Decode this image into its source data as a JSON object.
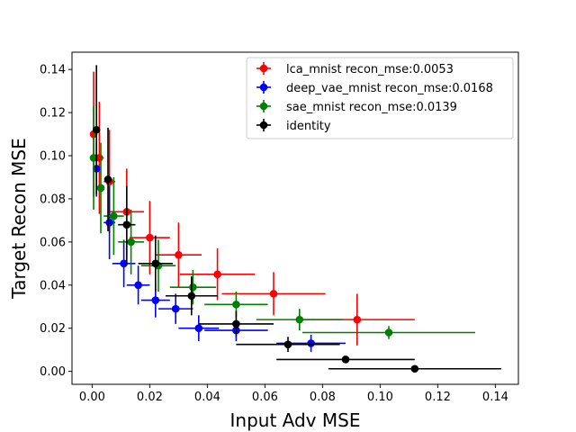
{
  "chart_data": {
    "type": "scatter",
    "xlabel": "Input Adv MSE",
    "ylabel": "Target Recon MSE",
    "xlim": [
      -0.007,
      0.148
    ],
    "ylim": [
      -0.006,
      0.148
    ],
    "xticks": [
      "0.00",
      "0.02",
      "0.04",
      "0.06",
      "0.08",
      "0.10",
      "0.12",
      "0.14"
    ],
    "yticks": [
      "0.00",
      "0.02",
      "0.04",
      "0.06",
      "0.08",
      "0.10",
      "0.12",
      "0.14"
    ],
    "grid": false,
    "legend_position": "top-right",
    "series": [
      {
        "name": "lca_mnist recon_mse:0.0053",
        "color": "#ff0000",
        "points": [
          {
            "x": 0.0005,
            "y": 0.11,
            "xerr": 0.001,
            "yerr": 0.029
          },
          {
            "x": 0.0025,
            "y": 0.099,
            "xerr": 0.0015,
            "yerr": 0.026
          },
          {
            "x": 0.006,
            "y": 0.088,
            "xerr": 0.002,
            "yerr": 0.024
          },
          {
            "x": 0.012,
            "y": 0.074,
            "xerr": 0.006,
            "yerr": 0.02
          },
          {
            "x": 0.02,
            "y": 0.062,
            "xerr": 0.007,
            "yerr": 0.017
          },
          {
            "x": 0.03,
            "y": 0.054,
            "xerr": 0.008,
            "yerr": 0.015
          },
          {
            "x": 0.0435,
            "y": 0.045,
            "xerr": 0.013,
            "yerr": 0.012
          },
          {
            "x": 0.063,
            "y": 0.036,
            "xerr": 0.018,
            "yerr": 0.01
          },
          {
            "x": 0.092,
            "y": 0.024,
            "xerr": 0.02,
            "yerr": 0.012
          }
        ]
      },
      {
        "name": "deep_vae_mnist recon_mse:0.0168",
        "color": "#0000ff",
        "points": [
          {
            "x": 0.0015,
            "y": 0.094,
            "xerr": 0.001,
            "yerr": 0.013
          },
          {
            "x": 0.006,
            "y": 0.069,
            "xerr": 0.002,
            "yerr": 0.017
          },
          {
            "x": 0.011,
            "y": 0.05,
            "xerr": 0.004,
            "yerr": 0.011
          },
          {
            "x": 0.016,
            "y": 0.04,
            "xerr": 0.004,
            "yerr": 0.009
          },
          {
            "x": 0.022,
            "y": 0.033,
            "xerr": 0.005,
            "yerr": 0.008
          },
          {
            "x": 0.029,
            "y": 0.029,
            "xerr": 0.006,
            "yerr": 0.007
          },
          {
            "x": 0.037,
            "y": 0.02,
            "xerr": 0.007,
            "yerr": 0.006
          },
          {
            "x": 0.05,
            "y": 0.019,
            "xerr": 0.011,
            "yerr": 0.005
          },
          {
            "x": 0.076,
            "y": 0.013,
            "xerr": 0.012,
            "yerr": 0.004
          }
        ]
      },
      {
        "name": "sae_mnist recon_mse:0.0139",
        "color": "#008000",
        "points": [
          {
            "x": 0.0005,
            "y": 0.099,
            "xerr": 0.001,
            "yerr": 0.024
          },
          {
            "x": 0.003,
            "y": 0.085,
            "xerr": 0.001,
            "yerr": 0.021
          },
          {
            "x": 0.0075,
            "y": 0.072,
            "xerr": 0.0035,
            "yerr": 0.018
          },
          {
            "x": 0.0135,
            "y": 0.06,
            "xerr": 0.0045,
            "yerr": 0.015
          },
          {
            "x": 0.023,
            "y": 0.049,
            "xerr": 0.006,
            "yerr": 0.012
          },
          {
            "x": 0.035,
            "y": 0.039,
            "xerr": 0.008,
            "yerr": 0.008
          },
          {
            "x": 0.05,
            "y": 0.031,
            "xerr": 0.011,
            "yerr": 0.006
          },
          {
            "x": 0.072,
            "y": 0.024,
            "xerr": 0.015,
            "yerr": 0.005
          },
          {
            "x": 0.103,
            "y": 0.018,
            "xerr": 0.03,
            "yerr": 0.003
          }
        ]
      },
      {
        "name": "identity",
        "color": "#000000",
        "points": [
          {
            "x": 0.0015,
            "y": 0.112,
            "xerr": 0.0005,
            "yerr": 0.03
          },
          {
            "x": 0.0055,
            "y": 0.089,
            "xerr": 0.001,
            "yerr": 0.024
          },
          {
            "x": 0.012,
            "y": 0.068,
            "xerr": 0.003,
            "yerr": 0.018
          },
          {
            "x": 0.022,
            "y": 0.05,
            "xerr": 0.006,
            "yerr": 0.013
          },
          {
            "x": 0.0345,
            "y": 0.035,
            "xerr": 0.009,
            "yerr": 0.009
          },
          {
            "x": 0.05,
            "y": 0.022,
            "xerr": 0.013,
            "yerr": 0.006
          },
          {
            "x": 0.068,
            "y": 0.0125,
            "xerr": 0.018,
            "yerr": 0.0035
          },
          {
            "x": 0.088,
            "y": 0.0055,
            "xerr": 0.024,
            "yerr": 0.0015
          },
          {
            "x": 0.112,
            "y": 0.0012,
            "xerr": 0.03,
            "yerr": 0.0005
          }
        ]
      }
    ]
  }
}
